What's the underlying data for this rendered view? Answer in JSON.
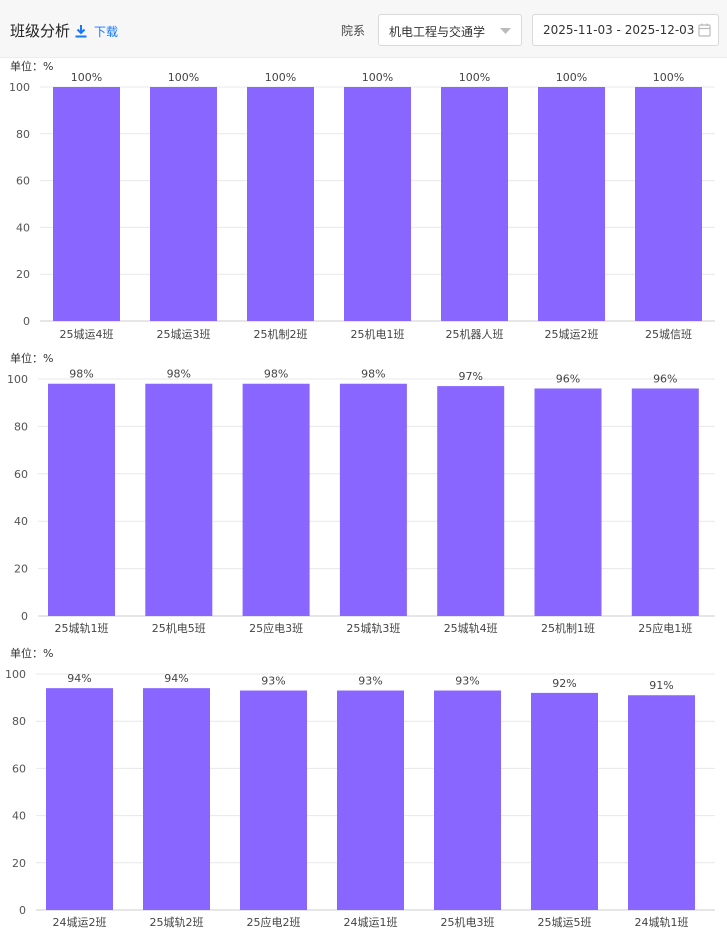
{
  "header": {
    "title": "班级分析",
    "download_label": "下载",
    "dept_label": "院系",
    "dept_value": "机电工程与交通学",
    "date_range": "2025-11-03 - 2025-12-03"
  },
  "colors": {
    "bar": "#8866ff",
    "axis": "#cccccc",
    "grid": "#e8e8e8"
  },
  "chart_data": [
    {
      "type": "bar",
      "ylabel": "单位：%",
      "ylim": [
        0,
        100
      ],
      "yticks": [
        0,
        20,
        40,
        60,
        80,
        100
      ],
      "categories": [
        "25城运4班",
        "25城运3班",
        "25机制2班",
        "25机电1班",
        "25机器人班",
        "25城运2班",
        "25城信班"
      ],
      "values": [
        100,
        100,
        100,
        100,
        100,
        100,
        100
      ],
      "labels": [
        "100%",
        "100%",
        "100%",
        "100%",
        "100%",
        "100%",
        "100%"
      ]
    },
    {
      "type": "bar",
      "ylabel": "单位：%",
      "ylim": [
        0,
        100
      ],
      "yticks": [
        0,
        20,
        40,
        60,
        80,
        100
      ],
      "categories": [
        "25城轨1班",
        "25机电5班",
        "25应电3班",
        "25城轨3班",
        "25城轨4班",
        "25机制1班",
        "25应电1班"
      ],
      "values": [
        98,
        98,
        98,
        98,
        97,
        96,
        96
      ],
      "labels": [
        "98%",
        "98%",
        "98%",
        "98%",
        "97%",
        "96%",
        "96%"
      ]
    },
    {
      "type": "bar",
      "ylabel": "单位：%",
      "ylim": [
        0,
        100
      ],
      "yticks": [
        0,
        20,
        40,
        60,
        80,
        100
      ],
      "categories": [
        "24城运2班",
        "25城轨2班",
        "25应电2班",
        "24城运1班",
        "25机电3班",
        "25城运5班",
        "24城轨1班"
      ],
      "values": [
        94,
        94,
        93,
        93,
        93,
        92,
        91
      ],
      "labels": [
        "94%",
        "94%",
        "93%",
        "93%",
        "93%",
        "92%",
        "91%"
      ]
    }
  ]
}
